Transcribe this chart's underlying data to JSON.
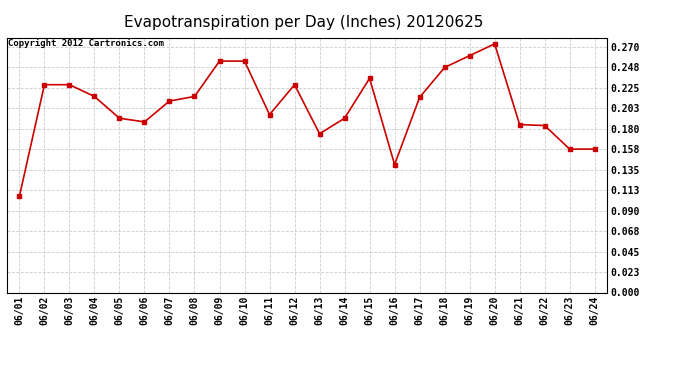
{
  "title": "Evapotranspiration per Day (Inches) 20120625",
  "copyright_text": "Copyright 2012 Cartronics.com",
  "dates": [
    "06/01",
    "06/02",
    "06/03",
    "06/04",
    "06/05",
    "06/06",
    "06/07",
    "06/08",
    "06/09",
    "06/10",
    "06/11",
    "06/12",
    "06/13",
    "06/14",
    "06/15",
    "06/16",
    "06/17",
    "06/18",
    "06/19",
    "06/20",
    "06/21",
    "06/22",
    "06/23",
    "06/24"
  ],
  "values": [
    0.106,
    0.229,
    0.229,
    0.216,
    0.192,
    0.188,
    0.211,
    0.216,
    0.255,
    0.255,
    0.196,
    0.229,
    0.175,
    0.192,
    0.236,
    0.141,
    0.215,
    0.248,
    0.261,
    0.274,
    0.185,
    0.184,
    0.158,
    0.158
  ],
  "line_color": "#cc0000",
  "marker": "s",
  "marker_size": 2.5,
  "bg_color": "#ffffff",
  "plot_bg_color": "#ffffff",
  "grid_color": "#cccccc",
  "ylim": [
    0.0,
    0.281
  ],
  "yticks": [
    0.0,
    0.023,
    0.045,
    0.068,
    0.09,
    0.113,
    0.135,
    0.158,
    0.18,
    0.203,
    0.225,
    0.248,
    0.27
  ],
  "title_fontsize": 11,
  "tick_fontsize": 7,
  "copyright_fontsize": 6.5
}
